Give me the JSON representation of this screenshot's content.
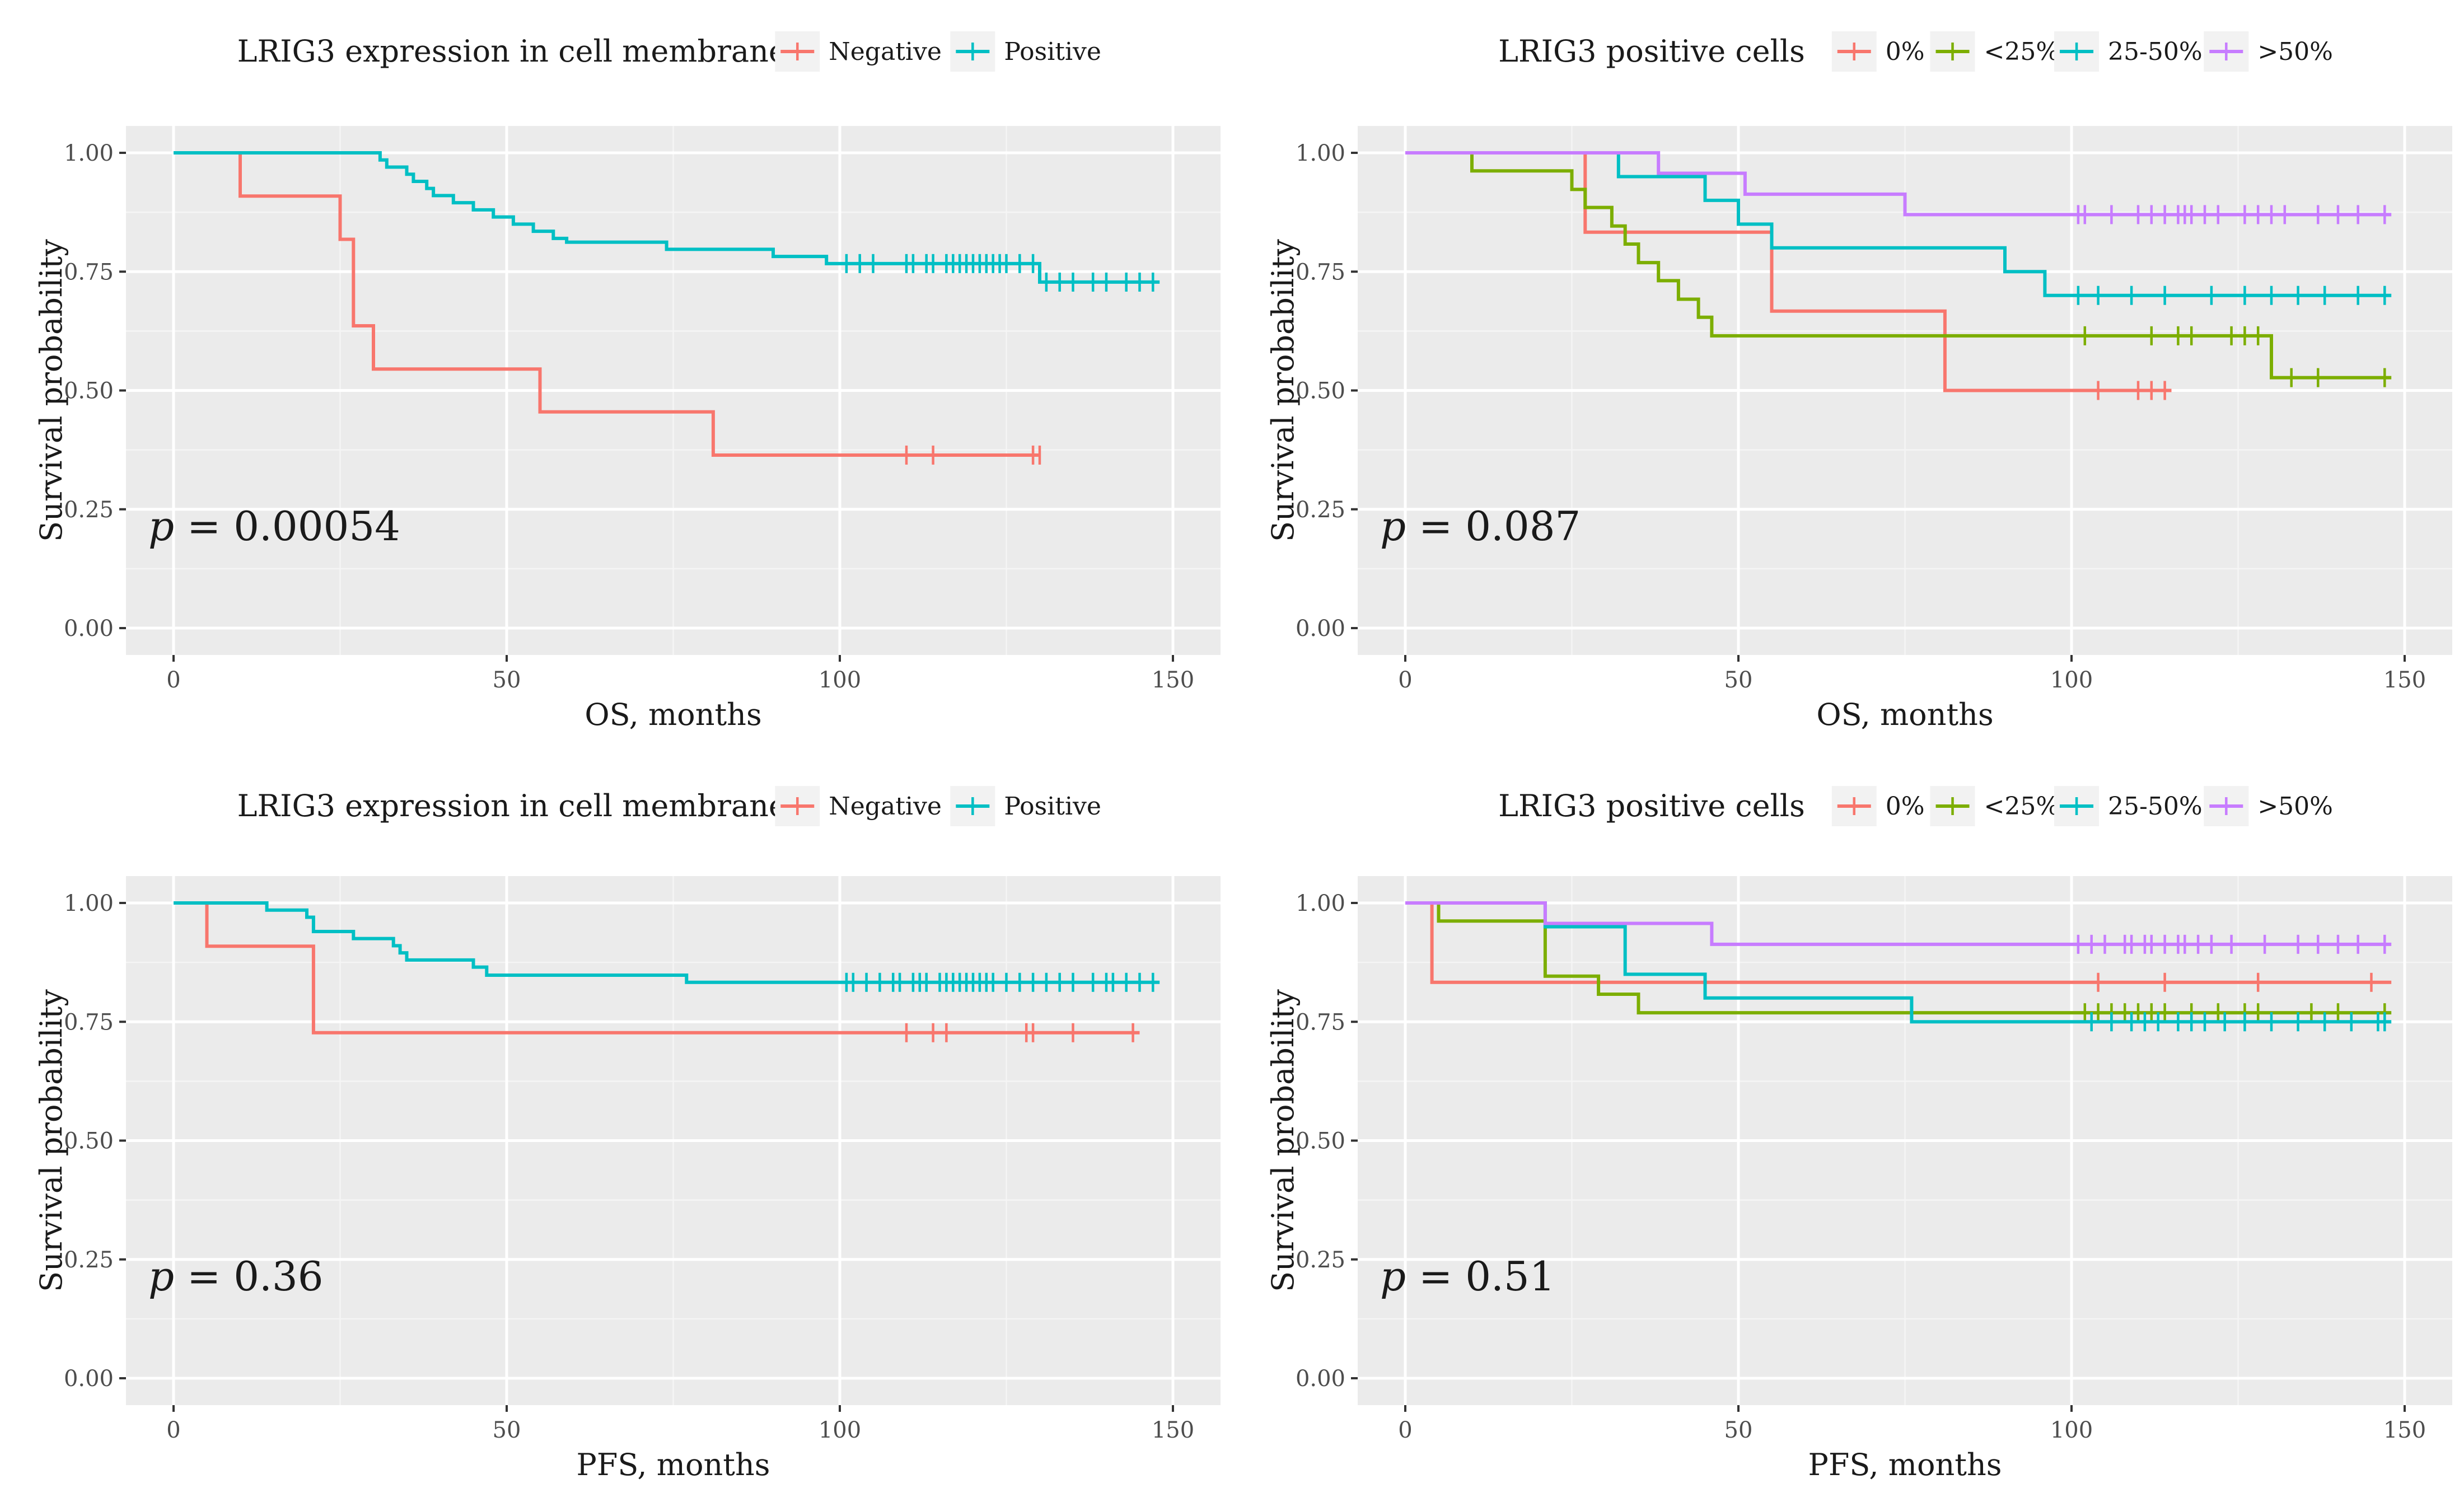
{
  "figure_colors": {
    "0%": "#F8766D",
    "Negative": "#F8766D",
    "<25%": "#7CAE00",
    "25-50%": "#00BFC4",
    "Positive": "#00BFC4",
    ">50%": "#C77CFF"
  },
  "chart_data": [
    {
      "type": "line",
      "subtype": "kaplan-meier",
      "legend_title": "LRIG3 expression in cell membrane",
      "xlabel": "OS, months",
      "ylabel": "Survival probability",
      "xlim": [
        0,
        150
      ],
      "ylim": [
        0,
        1
      ],
      "xticks": [
        "0",
        "50",
        "100",
        "150"
      ],
      "yticks": [
        "0.00",
        "0.25",
        "0.50",
        "0.75",
        "1.00"
      ],
      "pvalue": {
        "label": "p",
        "text": " = 0.00054"
      },
      "series": [
        {
          "name": "Negative",
          "color": "#F8766D",
          "steps": [
            [
              0,
              1.0
            ],
            [
              10,
              0.909
            ],
            [
              25,
              0.818
            ],
            [
              27,
              0.636
            ],
            [
              30,
              0.545
            ],
            [
              55,
              0.455
            ],
            [
              81,
              0.364
            ],
            [
              130,
              0.364
            ]
          ],
          "censored": [
            110,
            114,
            129,
            130
          ]
        },
        {
          "name": "Positive",
          "color": "#00BFC4",
          "steps": [
            [
              0,
              1.0
            ],
            [
              31,
              0.985
            ],
            [
              32,
              0.97
            ],
            [
              35,
              0.955
            ],
            [
              36,
              0.94
            ],
            [
              38,
              0.925
            ],
            [
              39,
              0.91
            ],
            [
              42,
              0.895
            ],
            [
              45,
              0.88
            ],
            [
              48,
              0.865
            ],
            [
              51,
              0.85
            ],
            [
              54,
              0.835
            ],
            [
              57,
              0.82
            ],
            [
              59,
              0.812
            ],
            [
              74,
              0.797
            ],
            [
              90,
              0.782
            ],
            [
              98,
              0.767
            ],
            [
              130,
              0.728
            ],
            [
              148,
              0.728
            ]
          ],
          "censored": [
            101,
            103,
            105,
            110,
            111,
            113,
            114,
            116,
            117,
            118,
            119,
            120,
            121,
            122,
            123,
            124,
            125,
            127,
            129,
            131,
            133,
            135,
            138,
            140,
            143,
            145,
            147
          ]
        }
      ]
    },
    {
      "type": "line",
      "subtype": "kaplan-meier",
      "legend_title": "LRIG3 positive cells",
      "xlabel": "OS, months",
      "ylabel": "Survival probability",
      "xlim": [
        0,
        150
      ],
      "ylim": [
        0,
        1
      ],
      "xticks": [
        "0",
        "50",
        "100",
        "150"
      ],
      "yticks": [
        "0.00",
        "0.25",
        "0.50",
        "0.75",
        "1.00"
      ],
      "pvalue": {
        "label": "p",
        "text": " = 0.087"
      },
      "series": [
        {
          "name": "0%",
          "color": "#F8766D",
          "steps": [
            [
              0,
              1.0
            ],
            [
              27,
              0.833
            ],
            [
              55,
              0.667
            ],
            [
              81,
              0.5
            ],
            [
              115,
              0.5
            ]
          ],
          "censored": [
            104,
            110,
            112,
            114
          ]
        },
        {
          "name": "<25%",
          "color": "#7CAE00",
          "steps": [
            [
              0,
              1.0
            ],
            [
              10,
              0.962
            ],
            [
              25,
              0.923
            ],
            [
              27,
              0.885
            ],
            [
              31,
              0.846
            ],
            [
              33,
              0.808
            ],
            [
              35,
              0.769
            ],
            [
              38,
              0.731
            ],
            [
              41,
              0.692
            ],
            [
              44,
              0.654
            ],
            [
              46,
              0.615
            ],
            [
              130,
              0.527
            ],
            [
              148,
              0.527
            ]
          ],
          "censored": [
            102,
            112,
            116,
            118,
            124,
            126,
            128,
            133,
            137,
            147
          ]
        },
        {
          "name": "25-50%",
          "color": "#00BFC4",
          "steps": [
            [
              0,
              1.0
            ],
            [
              32,
              0.95
            ],
            [
              45,
              0.9
            ],
            [
              50,
              0.85
            ],
            [
              55,
              0.8
            ],
            [
              90,
              0.75
            ],
            [
              96,
              0.7
            ],
            [
              148,
              0.7
            ]
          ],
          "censored": [
            101,
            104,
            109,
            114,
            121,
            126,
            130,
            134,
            138,
            143,
            147
          ]
        },
        {
          "name": ">50%",
          "color": "#C77CFF",
          "steps": [
            [
              0,
              1.0
            ],
            [
              38,
              0.957
            ],
            [
              51,
              0.913
            ],
            [
              75,
              0.87
            ],
            [
              148,
              0.87
            ]
          ],
          "censored": [
            101,
            102,
            106,
            110,
            112,
            114,
            116,
            117,
            118,
            120,
            122,
            126,
            128,
            130,
            132,
            137,
            140,
            143,
            147
          ]
        }
      ]
    },
    {
      "type": "line",
      "subtype": "kaplan-meier",
      "legend_title": "LRIG3 expression in cell membrane",
      "xlabel": "PFS, months",
      "ylabel": "Survival probability",
      "xlim": [
        0,
        150
      ],
      "ylim": [
        0,
        1
      ],
      "xticks": [
        "0",
        "50",
        "100",
        "150"
      ],
      "yticks": [
        "0.00",
        "0.25",
        "0.50",
        "0.75",
        "1.00"
      ],
      "pvalue": {
        "label": "p",
        "text": " = 0.36"
      },
      "series": [
        {
          "name": "Negative",
          "color": "#F8766D",
          "steps": [
            [
              0,
              1.0
            ],
            [
              5,
              0.909
            ],
            [
              21,
              0.727
            ],
            [
              145,
              0.727
            ]
          ],
          "censored": [
            110,
            114,
            116,
            128,
            129,
            135,
            144
          ]
        },
        {
          "name": "Positive",
          "color": "#00BFC4",
          "steps": [
            [
              0,
              1.0
            ],
            [
              14,
              0.985
            ],
            [
              20,
              0.97
            ],
            [
              21,
              0.94
            ],
            [
              27,
              0.925
            ],
            [
              33,
              0.91
            ],
            [
              34,
              0.895
            ],
            [
              35,
              0.88
            ],
            [
              45,
              0.865
            ],
            [
              47,
              0.848
            ],
            [
              77,
              0.833
            ],
            [
              148,
              0.833
            ]
          ],
          "censored": [
            101,
            102,
            104,
            106,
            108,
            109,
            111,
            112,
            113,
            115,
            116,
            117,
            118,
            119,
            120,
            121,
            122,
            123,
            125,
            127,
            129,
            131,
            133,
            135,
            138,
            140,
            141,
            143,
            145,
            147
          ]
        }
      ]
    },
    {
      "type": "line",
      "subtype": "kaplan-meier",
      "legend_title": "LRIG3 positive cells",
      "xlabel": "PFS, months",
      "ylabel": "Survival probability",
      "xlim": [
        0,
        150
      ],
      "ylim": [
        0,
        1
      ],
      "xticks": [
        "0",
        "50",
        "100",
        "150"
      ],
      "yticks": [
        "0.00",
        "0.25",
        "0.50",
        "0.75",
        "1.00"
      ],
      "pvalue": {
        "label": "p",
        "text": " = 0.51"
      },
      "series": [
        {
          "name": "0%",
          "color": "#F8766D",
          "steps": [
            [
              0,
              1.0
            ],
            [
              4,
              0.833
            ],
            [
              148,
              0.833
            ]
          ],
          "censored": [
            104,
            114,
            128,
            145
          ]
        },
        {
          "name": "<25%",
          "color": "#7CAE00",
          "steps": [
            [
              0,
              1.0
            ],
            [
              5,
              0.962
            ],
            [
              21,
              0.846
            ],
            [
              29,
              0.808
            ],
            [
              35,
              0.769
            ],
            [
              148,
              0.769
            ]
          ],
          "censored": [
            102,
            104,
            106,
            108,
            110,
            112,
            114,
            118,
            122,
            126,
            128,
            136,
            140,
            147
          ]
        },
        {
          "name": "25-50%",
          "color": "#00BFC4",
          "steps": [
            [
              0,
              1.0
            ],
            [
              21,
              0.95
            ],
            [
              33,
              0.85
            ],
            [
              45,
              0.8
            ],
            [
              76,
              0.75
            ],
            [
              148,
              0.75
            ]
          ],
          "censored": [
            103,
            106,
            109,
            111,
            113,
            116,
            118,
            120,
            123,
            126,
            130,
            134,
            138,
            142,
            146,
            147
          ]
        },
        {
          "name": ">50%",
          "color": "#C77CFF",
          "steps": [
            [
              0,
              1.0
            ],
            [
              21,
              0.957
            ],
            [
              46,
              0.913
            ],
            [
              148,
              0.913
            ]
          ],
          "censored": [
            101,
            103,
            105,
            108,
            109,
            111,
            112,
            114,
            116,
            117,
            119,
            121,
            124,
            129,
            134,
            137,
            140,
            143,
            147
          ]
        }
      ]
    }
  ]
}
